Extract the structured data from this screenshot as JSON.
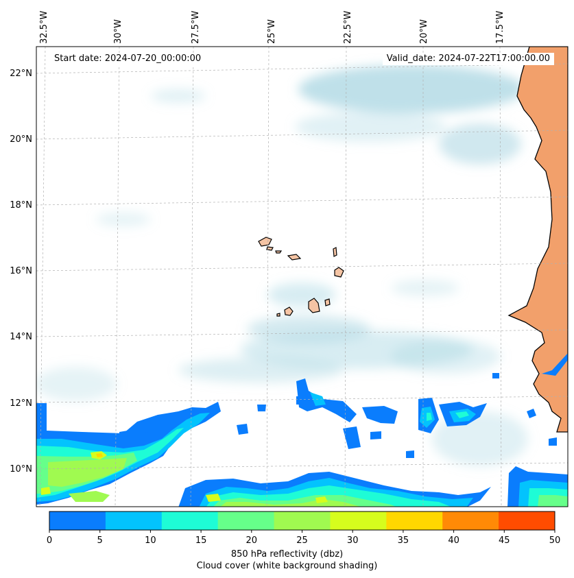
{
  "map": {
    "start_date": "Start date: 2024-07-20_00:00:00",
    "valid_date": "Valid_date: 2024-07-22T17:00:00.00",
    "lon_labels": [
      "32.5°W",
      "30°W",
      "27.5°W",
      "25°W",
      "22.5°W",
      "20°W",
      "17.5°W"
    ],
    "lat_labels": [
      "22°N",
      "20°N",
      "18°N",
      "16°N",
      "14°N",
      "12°N",
      "10°N"
    ],
    "gridlines": "dashed",
    "coastlines": true,
    "land_color": "#f2a06b",
    "cloud_color": "#a9d6e2"
  },
  "colorbar": {
    "title": "850 hPa reflectivity (dbz)",
    "subtitle": "Cloud cover (white background shading)",
    "ticks": [
      "0",
      "5",
      "10",
      "15",
      "20",
      "25",
      "30",
      "35",
      "40",
      "45",
      "50"
    ],
    "colors": [
      "#0a7dfd",
      "#03c3fd",
      "#1efcd6",
      "#66ff8a",
      "#a0fa50",
      "#d6fd1d",
      "#ffd700",
      "#ff8a06",
      "#ff4c00"
    ]
  }
}
